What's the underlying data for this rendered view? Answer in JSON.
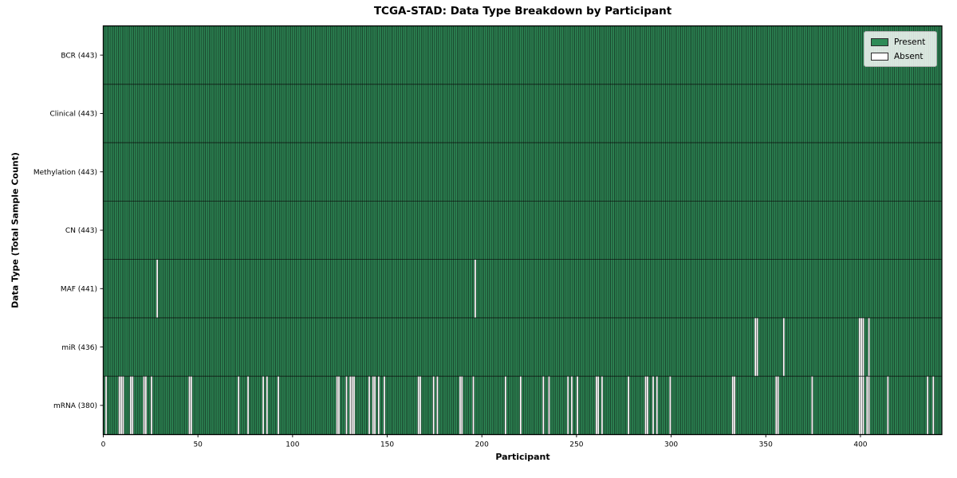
{
  "chart_data": {
    "type": "heatmap",
    "title": "TCGA-STAD: Data Type Breakdown by Participant",
    "xlabel": "Participant",
    "ylabel": "Data Type (Total Sample Count)",
    "n_participants": 443,
    "x_range": [
      0,
      443
    ],
    "x_ticks": [
      0,
      50,
      100,
      150,
      200,
      250,
      300,
      350,
      400
    ],
    "grid": false,
    "legend": {
      "position": "upper right",
      "items": [
        {
          "label": "Present",
          "color": "#2e8b57"
        },
        {
          "label": "Absent",
          "color": "#ffffff"
        }
      ]
    },
    "colors": {
      "present": "#2e8b57",
      "absent": "#ffffff",
      "bar_edge": "#0a0a0a",
      "spine": "#000000"
    },
    "rows": [
      {
        "name": "BCR",
        "label": "BCR (443)",
        "count": 443,
        "absent_participants": []
      },
      {
        "name": "Clinical",
        "label": "Clinical (443)",
        "count": 443,
        "absent_participants": []
      },
      {
        "name": "Methylation",
        "label": "Methylation (443)",
        "count": 443,
        "absent_participants": []
      },
      {
        "name": "CN",
        "label": "CN (443)",
        "count": 443,
        "absent_participants": []
      },
      {
        "name": "MAF",
        "label": "MAF (441)",
        "count": 441,
        "absent_participants": [
          28,
          196
        ]
      },
      {
        "name": "miR",
        "label": "miR (436)",
        "count": 436,
        "absent_participants": [
          344,
          345,
          359,
          399,
          400,
          401,
          404
        ]
      },
      {
        "name": "mRNA",
        "label": "mRNA (380)",
        "count": 380,
        "absent_participants": [
          1,
          8,
          9,
          10,
          14,
          15,
          21,
          22,
          25,
          45,
          46,
          71,
          76,
          84,
          86,
          92,
          123,
          124,
          128,
          130,
          131,
          132,
          140,
          142,
          143,
          145,
          148,
          166,
          167,
          174,
          176,
          188,
          189,
          195,
          212,
          220,
          232,
          235,
          245,
          247,
          250,
          260,
          261,
          263,
          277,
          286,
          287,
          290,
          292,
          299,
          332,
          333,
          355,
          356,
          374,
          399,
          400,
          401,
          403,
          404,
          414,
          435,
          438
        ]
      }
    ]
  }
}
